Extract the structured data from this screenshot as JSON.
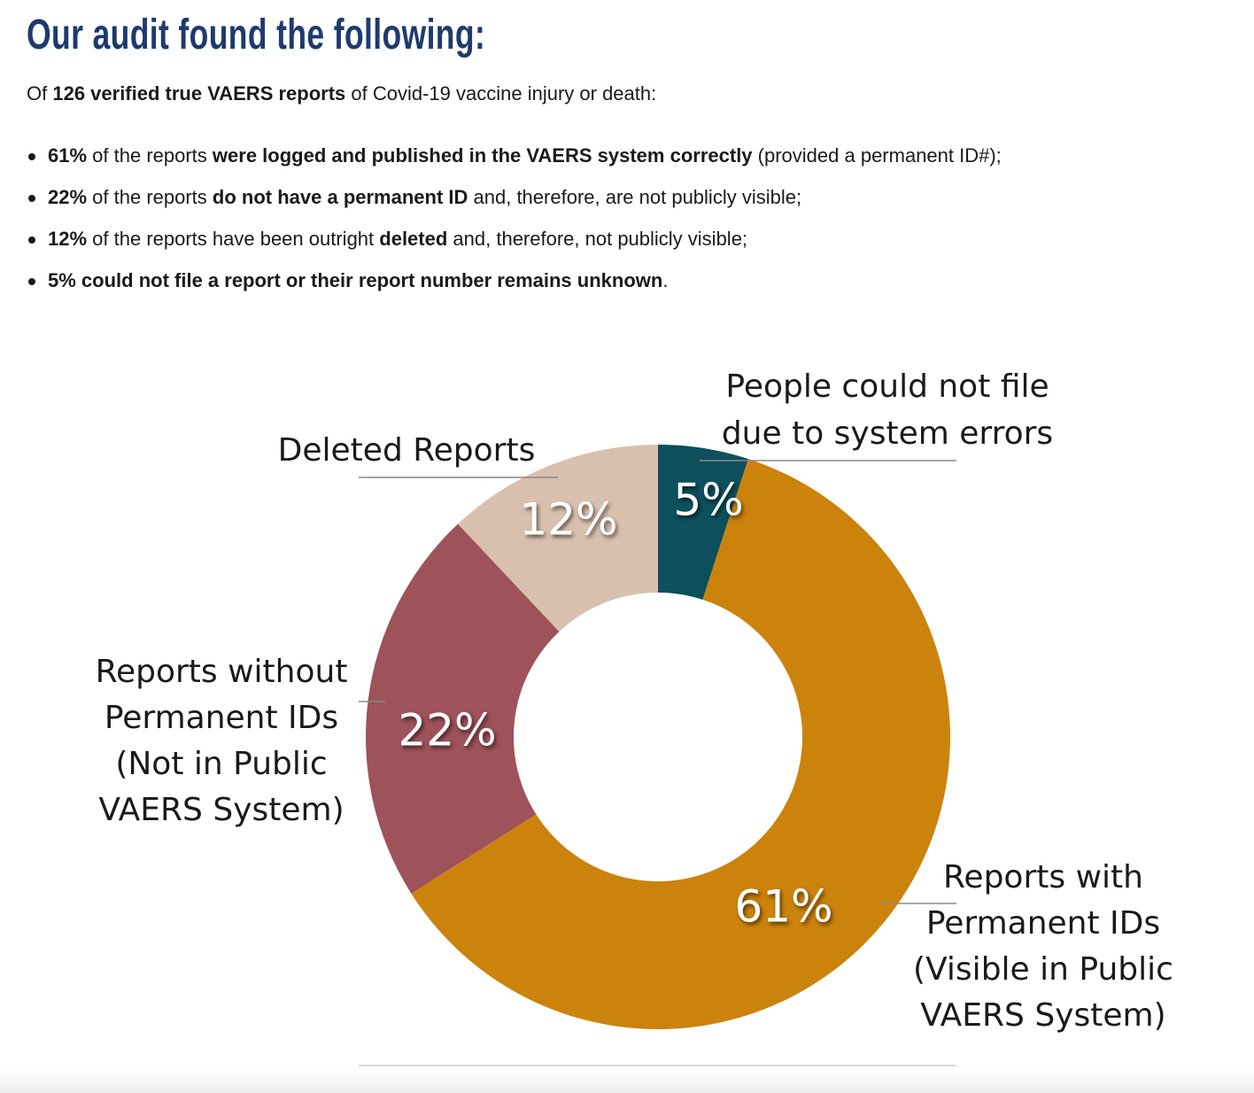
{
  "heading": "Our audit found the following:",
  "intro": {
    "prefix": "Of ",
    "bold": "126 verified true VAERS reports",
    "suffix": " of Covid-19 vaccine injury or death:"
  },
  "findings": [
    {
      "pct": "61%",
      "text1": " of the reports ",
      "bold": "were logged and published in the VAERS system correctly",
      "text2": " (provided a permanent ID#);"
    },
    {
      "pct": "22%",
      "text1": " of the reports ",
      "bold": "do not have a permanent ID",
      "text2": " and, therefore, are not publicly visible;"
    },
    {
      "pct": "12%",
      "text1": " of the reports have been outright ",
      "bold": "deleted",
      "text2": " and, therefore, not publicly visible;"
    },
    {
      "pct": "5%",
      "text1": " ",
      "bold": "could not file a report or their report number remains unknown",
      "text2": "."
    }
  ],
  "chart_data": {
    "type": "pie",
    "variant": "donut",
    "legend": "none",
    "slices": [
      {
        "label_lines": [
          "People could not file",
          "due to system errors"
        ],
        "value": 5,
        "display": "5%",
        "color": "#0d4f5c"
      },
      {
        "label_lines": [
          "Reports with",
          "Permanent IDs",
          "(Visible in Public",
          "VAERS System)"
        ],
        "value": 61,
        "display": "61%",
        "color": "#cc830c"
      },
      {
        "label_lines": [
          "Reports without",
          "Permanent IDs",
          "(Not in Public",
          "VAERS System)"
        ],
        "value": 22,
        "display": "22%",
        "color": "#9e525a"
      },
      {
        "label_lines": [
          "Deleted Reports"
        ],
        "value": 12,
        "display": "12%",
        "color": "#d9c0ae"
      }
    ]
  }
}
